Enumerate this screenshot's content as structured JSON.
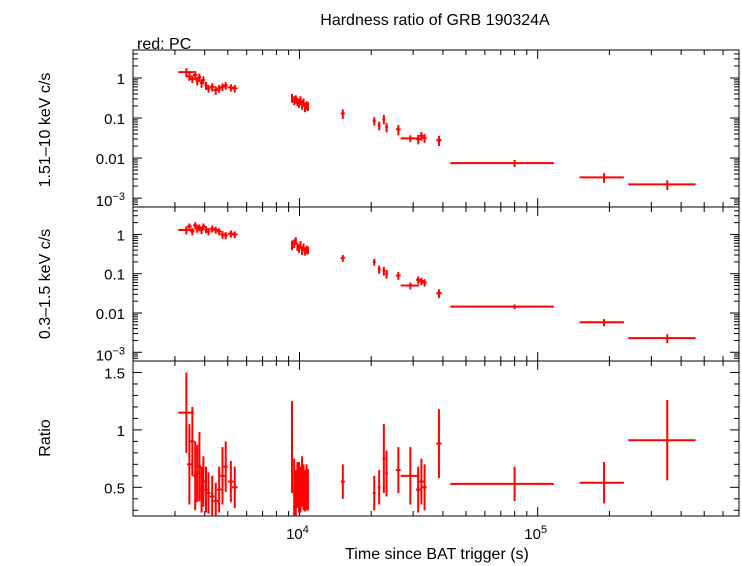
{
  "chart_data": {
    "type": "scatter",
    "title": "Hardness ratio of GRB 190324A",
    "subtitle": "red: PC",
    "xlabel": "Time since BAT trigger (s)",
    "xscale": "log",
    "xlim": [
      2000,
      700000
    ],
    "xticks": [
      {
        "value": 10000,
        "base": "10",
        "exp": "4"
      },
      {
        "value": 100000,
        "base": "10",
        "exp": "5"
      }
    ],
    "color": "#ff0000",
    "panels": [
      {
        "id": "hard",
        "ylabel": "1.51–10 keV c/s",
        "yscale": "log",
        "ylim": [
          0.0006,
          5
        ],
        "yticks": [
          {
            "value": 1,
            "label": "1"
          },
          {
            "value": 0.1,
            "label": "0.1"
          },
          {
            "value": 0.01,
            "label": "0.01"
          },
          {
            "value": 0.001,
            "base": "10",
            "exp": "−3"
          }
        ],
        "points": [
          [
            3350,
            1.4,
            250,
            0.35
          ],
          [
            3450,
            1.1,
            80,
            0.25
          ],
          [
            3550,
            0.95,
            80,
            0.2
          ],
          [
            3650,
            1.2,
            80,
            0.3
          ],
          [
            3720,
            0.85,
            60,
            0.2
          ],
          [
            3800,
            1.05,
            60,
            0.25
          ],
          [
            3880,
            0.75,
            60,
            0.18
          ],
          [
            3950,
            0.9,
            60,
            0.2
          ],
          [
            4050,
            0.65,
            60,
            0.15
          ],
          [
            4150,
            0.55,
            80,
            0.12
          ],
          [
            4300,
            0.6,
            100,
            0.14
          ],
          [
            4450,
            0.5,
            100,
            0.12
          ],
          [
            4600,
            0.55,
            100,
            0.12
          ],
          [
            4750,
            0.6,
            100,
            0.13
          ],
          [
            4900,
            0.65,
            100,
            0.14
          ],
          [
            5150,
            0.58,
            150,
            0.12
          ],
          [
            5350,
            0.55,
            150,
            0.12
          ],
          [
            9300,
            0.32,
            100,
            0.08
          ],
          [
            9500,
            0.28,
            100,
            0.07
          ],
          [
            9650,
            0.3,
            80,
            0.07
          ],
          [
            9800,
            0.26,
            80,
            0.06
          ],
          [
            9950,
            0.24,
            80,
            0.06
          ],
          [
            10100,
            0.28,
            80,
            0.07
          ],
          [
            10250,
            0.22,
            80,
            0.06
          ],
          [
            10400,
            0.25,
            80,
            0.06
          ],
          [
            10550,
            0.19,
            80,
            0.05
          ],
          [
            10700,
            0.21,
            80,
            0.05
          ],
          [
            10850,
            0.2,
            100,
            0.05
          ],
          [
            15200,
            0.13,
            300,
            0.035
          ],
          [
            20600,
            0.085,
            300,
            0.02
          ],
          [
            21600,
            0.065,
            300,
            0.016
          ],
          [
            22600,
            0.095,
            300,
            0.025
          ],
          [
            23200,
            0.06,
            300,
            0.016
          ],
          [
            26000,
            0.052,
            600,
            0.015
          ],
          [
            29200,
            0.031,
            2600,
            0.006
          ],
          [
            31500,
            0.03,
            700,
            0.008
          ],
          [
            32500,
            0.036,
            700,
            0.009
          ],
          [
            33500,
            0.032,
            700,
            0.008
          ],
          [
            38500,
            0.028,
            1000,
            0.008
          ],
          [
            80000,
            0.0075,
            37000,
            0.0015
          ],
          [
            190000,
            0.0033,
            40000,
            0.0009
          ],
          [
            350000,
            0.0022,
            110000,
            0.0006
          ]
        ]
      },
      {
        "id": "soft",
        "ylabel": "0.3–1.5 keV c/s",
        "yscale": "log",
        "ylim": [
          0.0006,
          5
        ],
        "yticks": [
          {
            "value": 1,
            "label": "1"
          },
          {
            "value": 0.1,
            "label": "0.1"
          },
          {
            "value": 0.01,
            "label": "0.01"
          },
          {
            "value": 0.001,
            "base": "10",
            "exp": "−3"
          }
        ],
        "points": [
          [
            3350,
            1.3,
            250,
            0.3
          ],
          [
            3450,
            1.6,
            80,
            0.3
          ],
          [
            3550,
            1.2,
            80,
            0.25
          ],
          [
            3650,
            1.7,
            80,
            0.35
          ],
          [
            3720,
            1.4,
            60,
            0.3
          ],
          [
            3800,
            1.5,
            60,
            0.3
          ],
          [
            3880,
            1.3,
            60,
            0.28
          ],
          [
            3950,
            1.6,
            60,
            0.3
          ],
          [
            4050,
            1.35,
            60,
            0.28
          ],
          [
            4150,
            1.2,
            80,
            0.25
          ],
          [
            4300,
            1.4,
            100,
            0.28
          ],
          [
            4450,
            1.3,
            100,
            0.26
          ],
          [
            4600,
            1.2,
            100,
            0.24
          ],
          [
            4750,
            1.0,
            100,
            0.22
          ],
          [
            4900,
            0.95,
            100,
            0.2
          ],
          [
            5150,
            1.05,
            150,
            0.22
          ],
          [
            5350,
            1.0,
            150,
            0.2
          ],
          [
            9300,
            0.55,
            100,
            0.15
          ],
          [
            9500,
            0.6,
            100,
            0.15
          ],
          [
            9650,
            0.7,
            80,
            0.15
          ],
          [
            9800,
            0.5,
            80,
            0.12
          ],
          [
            9950,
            0.45,
            80,
            0.11
          ],
          [
            10100,
            0.55,
            80,
            0.13
          ],
          [
            10250,
            0.4,
            80,
            0.1
          ],
          [
            10400,
            0.48,
            80,
            0.11
          ],
          [
            10550,
            0.38,
            80,
            0.09
          ],
          [
            10700,
            0.42,
            80,
            0.1
          ],
          [
            10850,
            0.4,
            100,
            0.09
          ],
          [
            15200,
            0.25,
            300,
            0.05
          ],
          [
            20600,
            0.2,
            300,
            0.04
          ],
          [
            21600,
            0.13,
            300,
            0.03
          ],
          [
            22600,
            0.12,
            300,
            0.03
          ],
          [
            23200,
            0.1,
            300,
            0.025
          ],
          [
            26000,
            0.09,
            600,
            0.02
          ],
          [
            29200,
            0.05,
            2600,
            0.01
          ],
          [
            31500,
            0.07,
            700,
            0.015
          ],
          [
            32500,
            0.065,
            700,
            0.014
          ],
          [
            33500,
            0.06,
            700,
            0.013
          ],
          [
            38500,
            0.032,
            1000,
            0.008
          ],
          [
            80000,
            0.0145,
            37000,
            0.002
          ],
          [
            190000,
            0.0058,
            40000,
            0.0012
          ],
          [
            350000,
            0.0023,
            110000,
            0.0006
          ]
        ]
      },
      {
        "id": "ratio",
        "ylabel": "Ratio",
        "yscale": "linear",
        "ylim": [
          0.25,
          1.6
        ],
        "yticks": [
          {
            "value": 1.5,
            "label": "1.5"
          },
          {
            "value": 1,
            "label": "1"
          },
          {
            "value": 0.5,
            "label": "0.5"
          }
        ],
        "points": [
          [
            3350,
            1.15,
            250,
            0.35
          ],
          [
            3450,
            0.7,
            80,
            0.35
          ],
          [
            3550,
            0.9,
            80,
            0.3
          ],
          [
            3650,
            0.6,
            80,
            0.3
          ],
          [
            3720,
            0.62,
            60,
            0.25
          ],
          [
            3800,
            0.68,
            60,
            0.3
          ],
          [
            3880,
            0.48,
            60,
            0.2
          ],
          [
            3950,
            0.55,
            60,
            0.22
          ],
          [
            4050,
            0.48,
            60,
            0.2
          ],
          [
            4150,
            0.45,
            80,
            0.18
          ],
          [
            4300,
            0.42,
            100,
            0.18
          ],
          [
            4450,
            0.38,
            100,
            0.16
          ],
          [
            4600,
            0.48,
            100,
            0.2
          ],
          [
            4750,
            0.6,
            100,
            0.25
          ],
          [
            4900,
            0.68,
            100,
            0.22
          ],
          [
            5150,
            0.55,
            150,
            0.18
          ],
          [
            5350,
            0.5,
            150,
            0.18
          ],
          [
            9300,
            0.85,
            100,
            0.4
          ],
          [
            9500,
            0.5,
            100,
            0.25
          ],
          [
            9650,
            0.45,
            80,
            0.2
          ],
          [
            9800,
            0.52,
            80,
            0.2
          ],
          [
            9950,
            0.5,
            80,
            0.22
          ],
          [
            10100,
            0.48,
            80,
            0.2
          ],
          [
            10250,
            0.55,
            80,
            0.22
          ],
          [
            10400,
            0.5,
            80,
            0.2
          ],
          [
            10550,
            0.47,
            80,
            0.18
          ],
          [
            10700,
            0.5,
            80,
            0.2
          ],
          [
            10850,
            0.48,
            100,
            0.18
          ],
          [
            15200,
            0.55,
            300,
            0.15
          ],
          [
            20600,
            0.45,
            300,
            0.15
          ],
          [
            21600,
            0.5,
            300,
            0.15
          ],
          [
            22600,
            0.75,
            300,
            0.3
          ],
          [
            23200,
            0.62,
            300,
            0.2
          ],
          [
            26000,
            0.65,
            600,
            0.2
          ],
          [
            29200,
            0.6,
            2600,
            0.25
          ],
          [
            31500,
            0.48,
            700,
            0.2
          ],
          [
            32500,
            0.55,
            700,
            0.2
          ],
          [
            33500,
            0.5,
            700,
            0.2
          ],
          [
            38500,
            0.88,
            1000,
            0.3
          ],
          [
            80000,
            0.53,
            37000,
            0.15
          ],
          [
            190000,
            0.54,
            40000,
            0.18
          ],
          [
            350000,
            0.91,
            110000,
            0.35
          ]
        ]
      }
    ]
  }
}
